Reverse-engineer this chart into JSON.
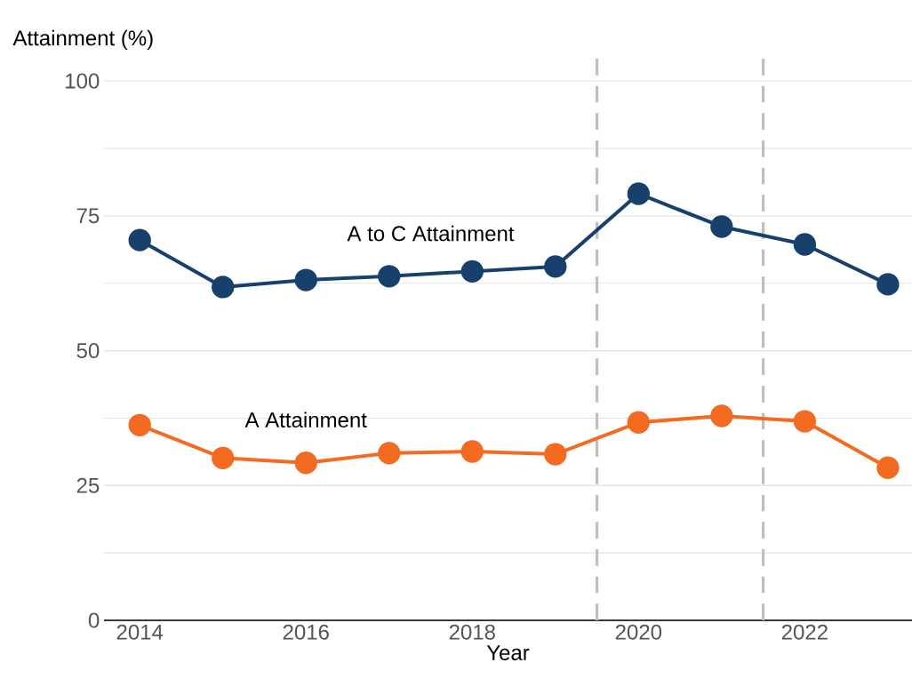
{
  "chart_data": {
    "type": "line",
    "xlabel": "Year",
    "ylabel": "Attainment (%)",
    "x": [
      2014,
      2015,
      2016,
      2017,
      2018,
      2019,
      2020,
      2021,
      2022,
      2023
    ],
    "series": [
      {
        "name": "A to C Attainment",
        "color": "#17406d",
        "values": [
          70.5,
          61.8,
          63.1,
          63.8,
          64.7,
          65.6,
          79.1,
          73.0,
          69.7,
          62.3
        ]
      },
      {
        "name": "A Attainment",
        "color": "#f26b21",
        "values": [
          36.2,
          30.1,
          29.2,
          31.0,
          31.3,
          30.8,
          36.7,
          37.9,
          36.9,
          28.3
        ]
      }
    ],
    "xlim": [
      2013.57,
      2023.29
    ],
    "ylim": [
      0,
      105
    ],
    "xticks": [
      2014,
      2016,
      2018,
      2020,
      2022
    ],
    "yticks": [
      0,
      25,
      50,
      75,
      100
    ],
    "grid": "y",
    "marker": "circle",
    "line_style": "solid",
    "ref_lines": [
      {
        "axis": "x",
        "value": 2019.5,
        "color": "#bfbfbf",
        "line_style": "dashed"
      },
      {
        "axis": "x",
        "value": 2021.5,
        "color": "#bfbfbf",
        "line_style": "dashed"
      }
    ]
  }
}
